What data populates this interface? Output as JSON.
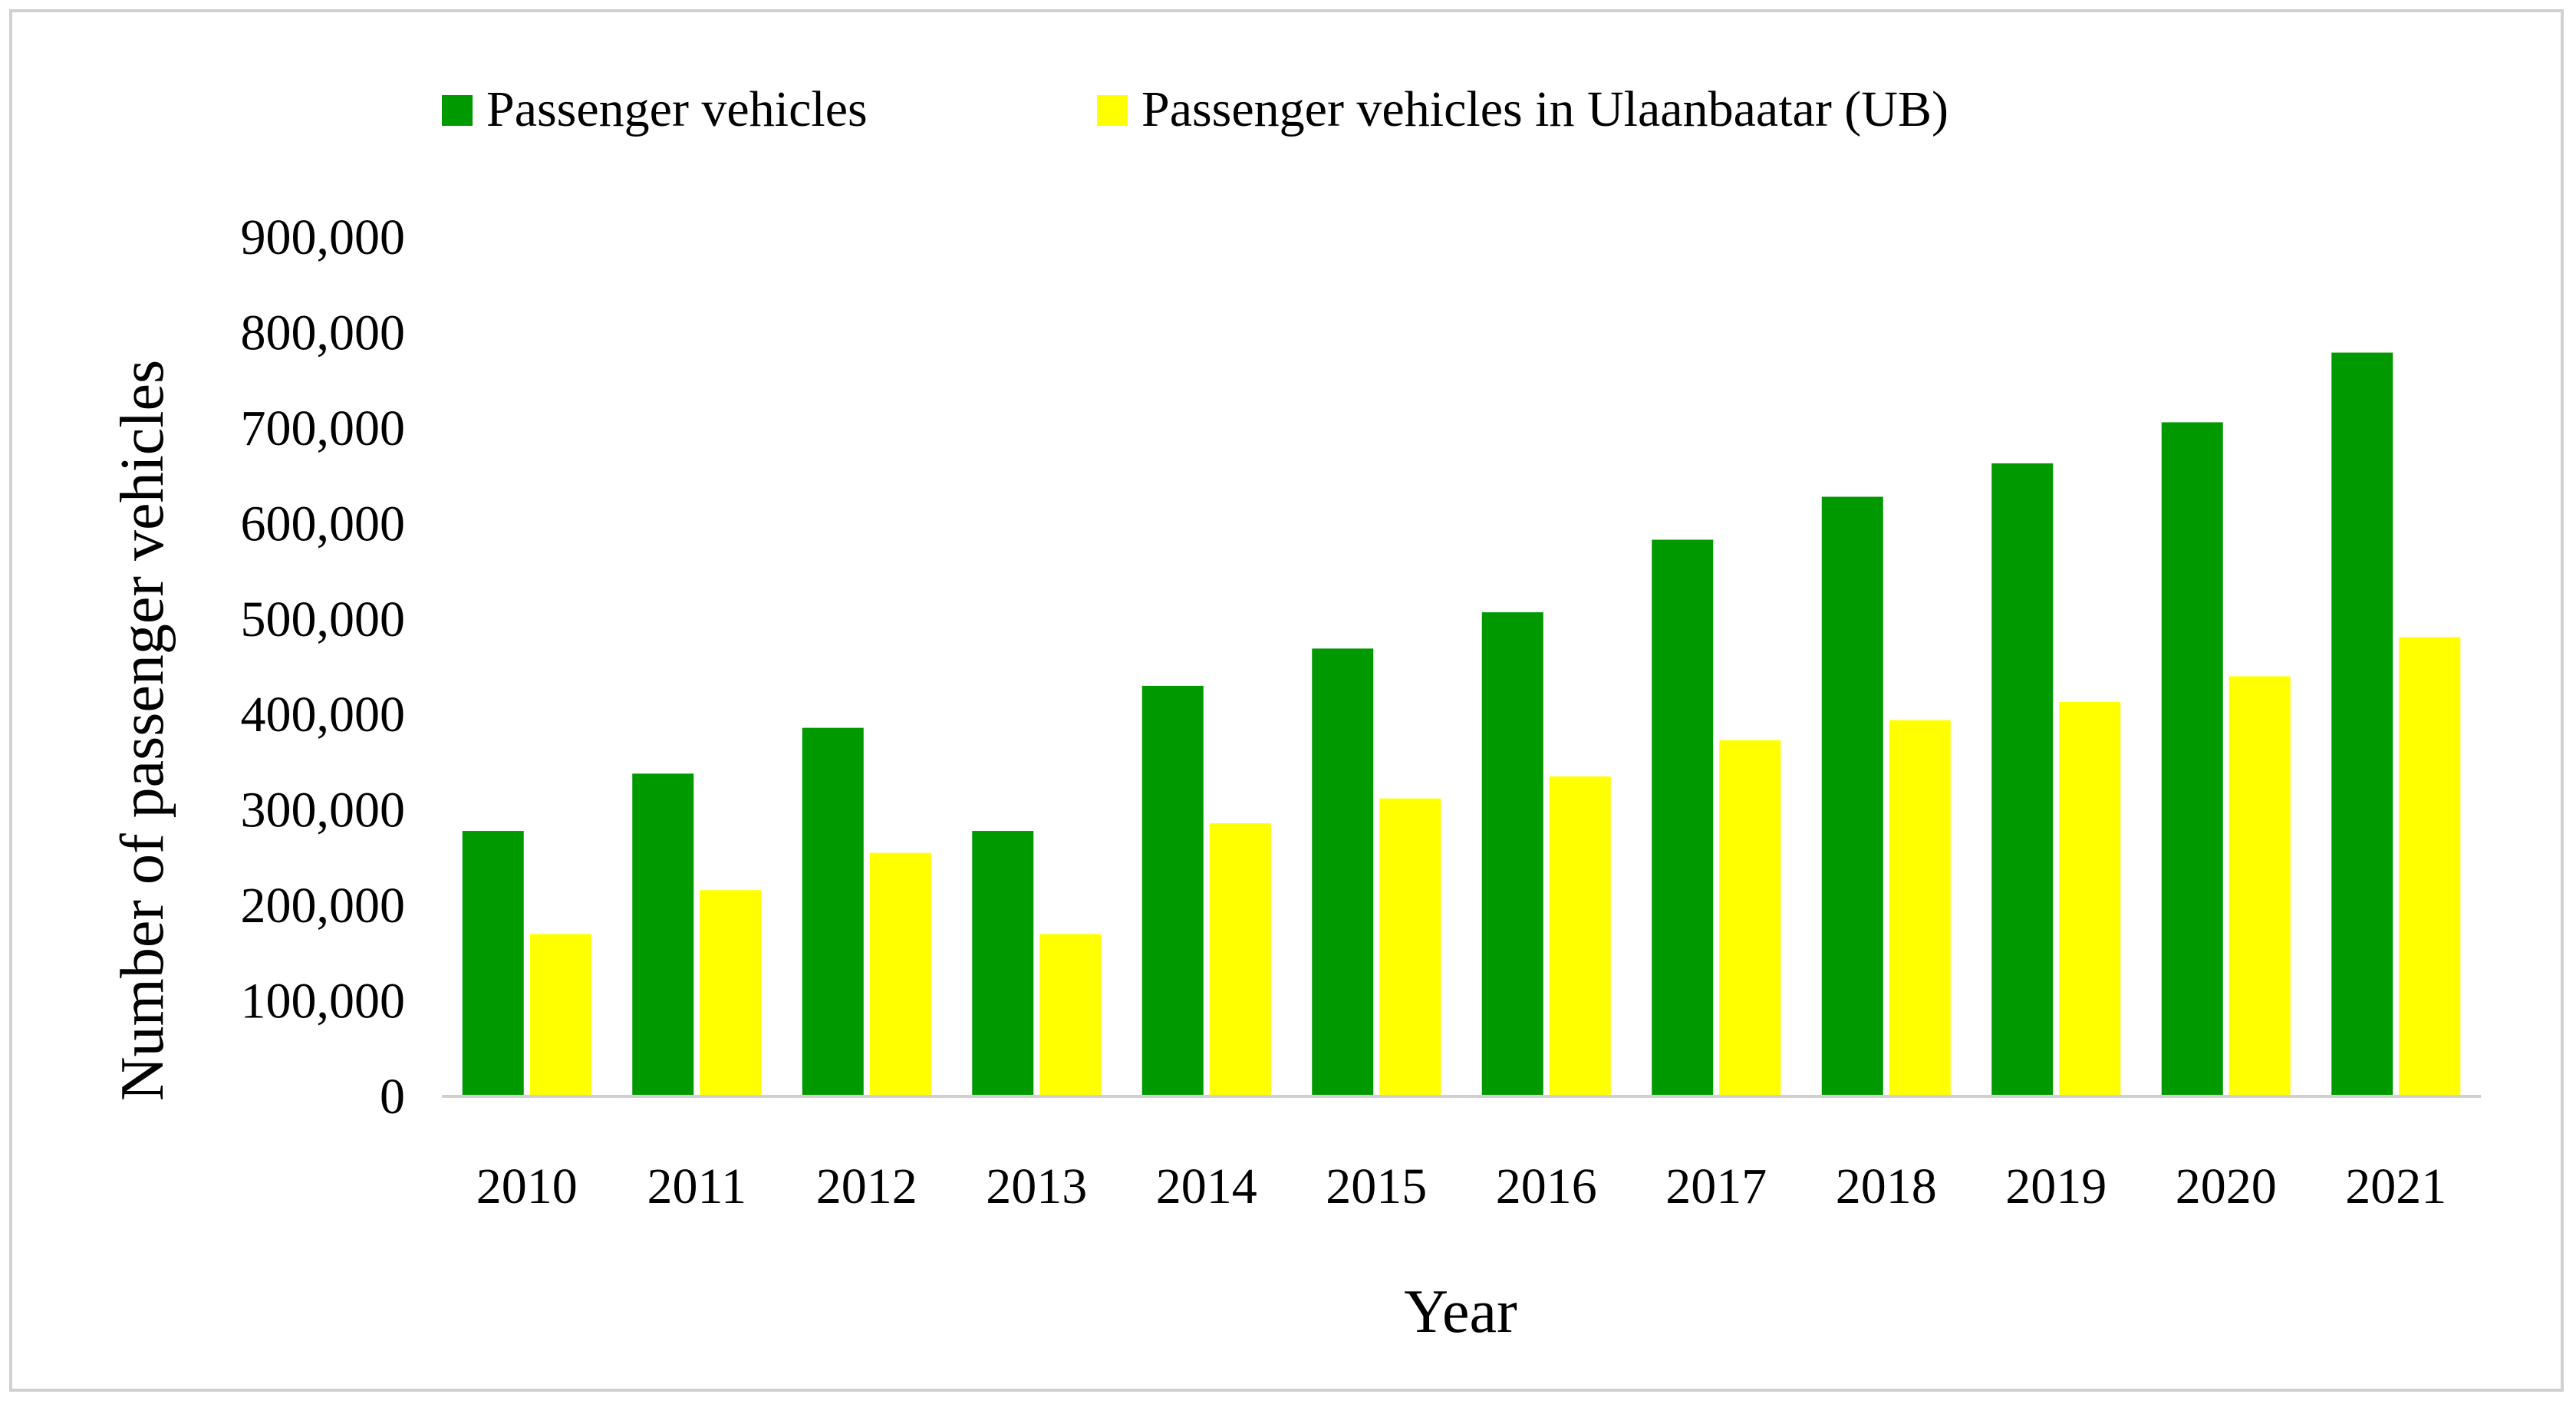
{
  "chart_data": {
    "type": "bar",
    "title": "",
    "xlabel": "Year",
    "ylabel": "Number of passenger vehicles",
    "ylim": [
      0,
      900000
    ],
    "yticks": [
      "0",
      "100,000",
      "200,000",
      "300,000",
      "400,000",
      "500,000",
      "600,000",
      "700,000",
      "800,000",
      "900,000"
    ],
    "grid": false,
    "legend_position": "top",
    "categories": [
      "2010",
      "2011",
      "2012",
      "2013",
      "2014",
      "2015",
      "2016",
      "2017",
      "2018",
      "2019",
      "2020",
      "2021"
    ],
    "series": [
      {
        "name": "Passenger vehicles",
        "color": "#009900",
        "values": [
          278000,
          338000,
          386000,
          278000,
          430000,
          469000,
          507000,
          583000,
          628000,
          663000,
          706000,
          779000
        ]
      },
      {
        "name": "Passenger vehicles in Ulaanbaatar (UB)",
        "color": "#ffff00",
        "values": [
          170000,
          216000,
          255000,
          170000,
          286000,
          312000,
          335000,
          373000,
          394000,
          413000,
          440000,
          481000
        ]
      }
    ]
  }
}
